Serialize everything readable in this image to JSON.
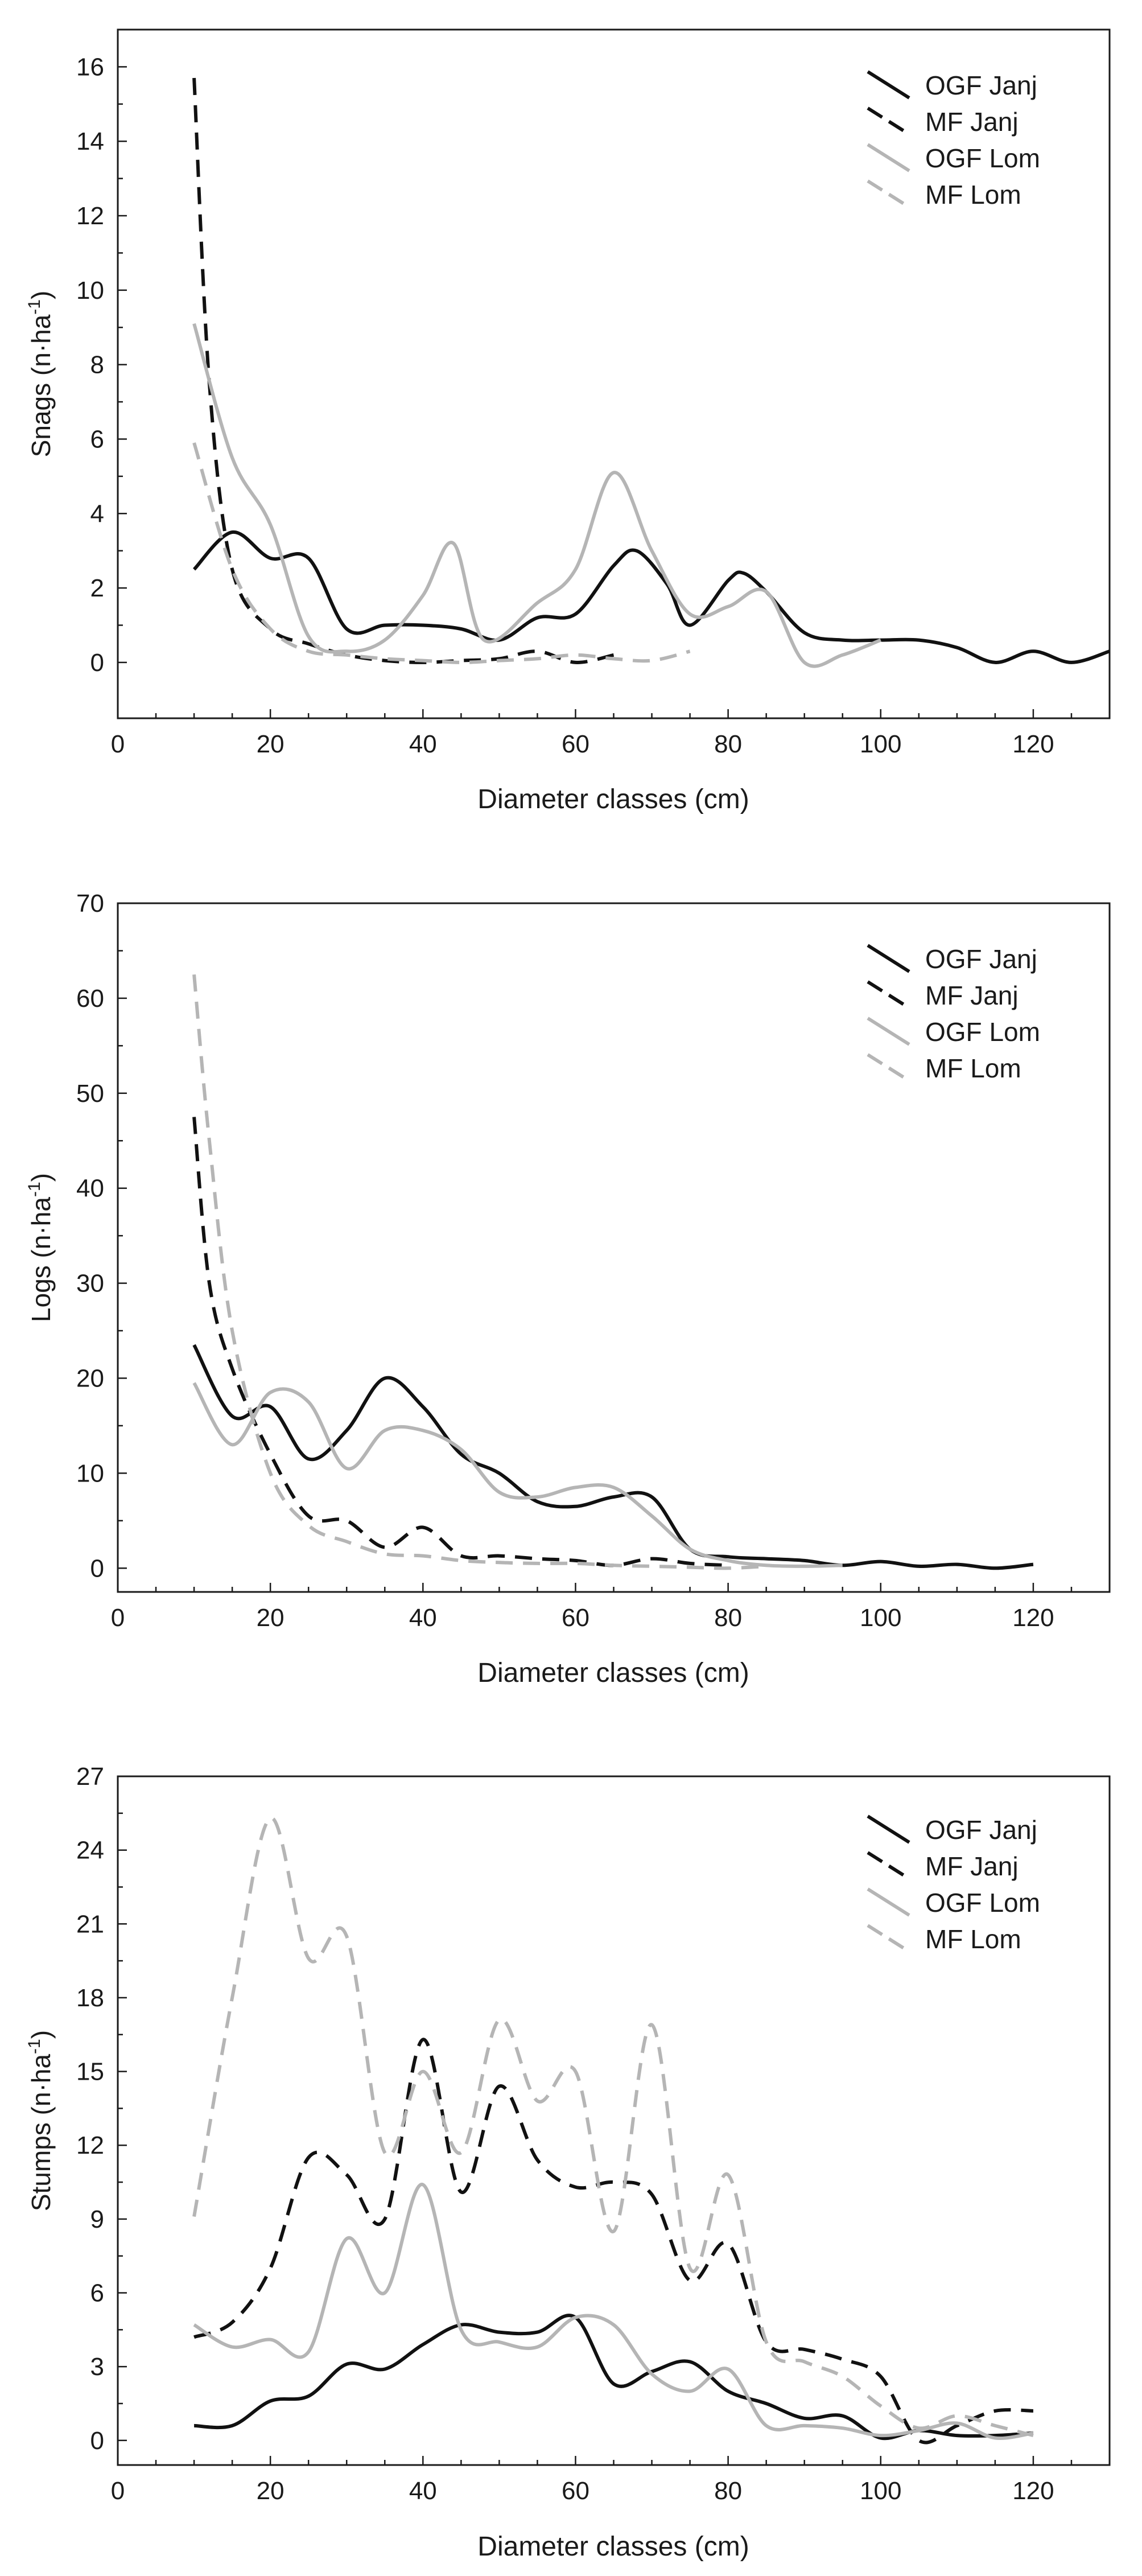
{
  "colors": {
    "black_series": "#111111",
    "gray_series": "#b5b5b5",
    "axis": "#1a1a1a"
  },
  "legend_labels": [
    "OGF Janj",
    "MF Janj",
    "OGF Lom",
    "MF Lom"
  ],
  "chart_data": [
    {
      "type": "line",
      "title": "",
      "xlabel": "Diameter classes (cm)",
      "ylabel": "Snags (n·ha⁻¹)",
      "ylabel_parts": {
        "pre": "Snags (n·ha",
        "sup": "-1",
        "post": ")"
      },
      "xlim": [
        0,
        130
      ],
      "ylim": [
        -1.5,
        17
      ],
      "xticks": [
        0,
        20,
        40,
        60,
        80,
        100,
        120
      ],
      "yticks": [
        0,
        2,
        4,
        6,
        8,
        10,
        12,
        14,
        16
      ],
      "legend_position": "top-right",
      "series": [
        {
          "name": "OGF Janj",
          "color": "black",
          "dash": false,
          "x": [
            10,
            15,
            20,
            25,
            30,
            35,
            40,
            45,
            50,
            55,
            60,
            65,
            68,
            72,
            75,
            80,
            82,
            85,
            90,
            95,
            100,
            105,
            110,
            115,
            120,
            125,
            130
          ],
          "y": [
            2.5,
            3.5,
            2.8,
            2.8,
            0.9,
            1.0,
            1.0,
            0.9,
            0.6,
            1.2,
            1.3,
            2.6,
            3.0,
            2.1,
            1.0,
            2.2,
            2.4,
            1.9,
            0.8,
            0.6,
            0.6,
            0.6,
            0.4,
            0.0,
            0.3,
            0.0,
            0.3
          ]
        },
        {
          "name": "MF Janj",
          "color": "black",
          "dash": true,
          "x": [
            10,
            12,
            15,
            20,
            25,
            30,
            35,
            40,
            45,
            50,
            55,
            60,
            65
          ],
          "y": [
            15.7,
            7.5,
            2.5,
            0.9,
            0.5,
            0.2,
            0.05,
            0.0,
            0.05,
            0.1,
            0.3,
            0.0,
            0.2
          ]
        },
        {
          "name": "OGF Lom",
          "color": "gray",
          "dash": false,
          "x": [
            10,
            15,
            20,
            25,
            30,
            35,
            40,
            44,
            48,
            55,
            60,
            65,
            70,
            75,
            80,
            85,
            90,
            95,
            100
          ],
          "y": [
            9.1,
            5.5,
            3.7,
            0.7,
            0.3,
            0.6,
            1.8,
            3.2,
            0.6,
            1.6,
            2.5,
            5.1,
            3.0,
            1.3,
            1.5,
            1.9,
            0.0,
            0.2,
            0.6
          ]
        },
        {
          "name": "MF Lom",
          "color": "gray",
          "dash": true,
          "x": [
            10,
            15,
            20,
            25,
            30,
            35,
            40,
            45,
            50,
            55,
            60,
            65,
            70,
            75
          ],
          "y": [
            5.9,
            2.5,
            0.9,
            0.3,
            0.2,
            0.1,
            0.05,
            0.0,
            0.05,
            0.1,
            0.2,
            0.1,
            0.05,
            0.3
          ]
        }
      ]
    },
    {
      "type": "line",
      "title": "",
      "xlabel": "Diameter classes (cm)",
      "ylabel": "Logs (n·ha⁻¹)",
      "ylabel_parts": {
        "pre": "Logs (n·ha",
        "sup": "-1",
        "post": ")"
      },
      "xlim": [
        0,
        130
      ],
      "ylim": [
        -2.5,
        70
      ],
      "xticks": [
        0,
        20,
        40,
        60,
        80,
        100,
        120
      ],
      "yticks": [
        0,
        10,
        20,
        30,
        40,
        50,
        60,
        70
      ],
      "legend_position": "top-right",
      "series": [
        {
          "name": "OGF Janj",
          "color": "black",
          "dash": false,
          "x": [
            10,
            15,
            20,
            25,
            30,
            35,
            40,
            45,
            50,
            55,
            60,
            65,
            70,
            75,
            80,
            85,
            90,
            95,
            100,
            105,
            110,
            115,
            120
          ],
          "y": [
            23.5,
            16,
            17,
            11.5,
            14.5,
            20,
            17,
            12,
            10,
            7,
            6.5,
            7.5,
            7.5,
            2,
            1.2,
            1.0,
            0.8,
            0.3,
            0.7,
            0.2,
            0.4,
            0.0,
            0.4
          ]
        },
        {
          "name": "MF Janj",
          "color": "black",
          "dash": true,
          "x": [
            10,
            12,
            15,
            20,
            25,
            30,
            35,
            40,
            45,
            50,
            55,
            60,
            65,
            70,
            75,
            80
          ],
          "y": [
            47.5,
            30,
            21,
            12,
            5.5,
            5.0,
            2.2,
            4.3,
            1.3,
            1.3,
            1.0,
            0.8,
            0.3,
            1.0,
            0.5,
            0.3
          ]
        },
        {
          "name": "OGF Lom",
          "color": "gray",
          "dash": false,
          "x": [
            10,
            15,
            20,
            25,
            30,
            35,
            40,
            45,
            50,
            55,
            60,
            65,
            70,
            75,
            80,
            85,
            90,
            95
          ],
          "y": [
            19.5,
            13,
            18.5,
            17.5,
            10.5,
            14.5,
            14.5,
            12.5,
            8,
            7.5,
            8.5,
            8.5,
            5.5,
            2.0,
            0.8,
            0.3,
            0.2,
            0.3
          ]
        },
        {
          "name": "MF Lom",
          "color": "gray",
          "dash": true,
          "x": [
            10,
            12,
            15,
            20,
            25,
            30,
            35,
            40,
            45,
            50,
            55,
            60,
            65,
            70,
            75,
            80,
            85
          ],
          "y": [
            62.5,
            45,
            25,
            10,
            4.5,
            2.8,
            1.5,
            1.3,
            0.8,
            0.6,
            0.5,
            0.5,
            0.3,
            0.2,
            0.1,
            0.0,
            0.2
          ]
        }
      ]
    },
    {
      "type": "line",
      "title": "",
      "xlabel": "Diameter classes (cm)",
      "ylabel": "Stumps (n·ha⁻¹)",
      "ylabel_parts": {
        "pre": "Stumps (n·ha",
        "sup": "-1",
        "post": ")"
      },
      "xlim": [
        0,
        130
      ],
      "ylim": [
        -1,
        27
      ],
      "xticks": [
        0,
        20,
        40,
        60,
        80,
        100,
        120
      ],
      "yticks": [
        0,
        3,
        6,
        9,
        12,
        15,
        18,
        21,
        24,
        27
      ],
      "legend_position": "top-right",
      "series": [
        {
          "name": "OGF Janj",
          "color": "black",
          "dash": false,
          "x": [
            10,
            15,
            20,
            25,
            30,
            35,
            40,
            45,
            50,
            55,
            60,
            65,
            70,
            75,
            80,
            85,
            90,
            95,
            100,
            105,
            110,
            115,
            120
          ],
          "y": [
            0.6,
            0.6,
            1.6,
            1.8,
            3.1,
            2.9,
            3.9,
            4.7,
            4.4,
            4.4,
            5.0,
            2.3,
            2.8,
            3.2,
            2.0,
            1.5,
            0.9,
            1.0,
            0.1,
            0.4,
            0.2,
            0.2,
            0.3
          ]
        },
        {
          "name": "MF Janj",
          "color": "black",
          "dash": true,
          "x": [
            10,
            15,
            20,
            25,
            30,
            35,
            40,
            45,
            50,
            55,
            60,
            65,
            70,
            75,
            80,
            85,
            90,
            95,
            100,
            105,
            110,
            115,
            120
          ],
          "y": [
            4.2,
            4.8,
            7.0,
            11.5,
            10.8,
            9.0,
            16.3,
            10.1,
            14.4,
            11.4,
            10.3,
            10.5,
            10.0,
            6.5,
            8.0,
            4.0,
            3.7,
            3.3,
            2.6,
            0.0,
            0.6,
            1.2,
            1.2
          ]
        },
        {
          "name": "OGF Lom",
          "color": "gray",
          "dash": false,
          "x": [
            10,
            15,
            20,
            25,
            30,
            35,
            40,
            45,
            50,
            55,
            60,
            65,
            70,
            75,
            80,
            85,
            90,
            95,
            100,
            105,
            110,
            115,
            120
          ],
          "y": [
            4.7,
            3.8,
            4.1,
            3.6,
            8.2,
            6.0,
            10.4,
            4.5,
            4.0,
            3.8,
            5.0,
            4.7,
            2.7,
            2.0,
            2.9,
            0.6,
            0.6,
            0.5,
            0.2,
            0.4,
            0.7,
            0.1,
            0.3
          ]
        },
        {
          "name": "MF Lom",
          "color": "gray",
          "dash": true,
          "x": [
            10,
            15,
            20,
            25,
            30,
            35,
            40,
            45,
            50,
            55,
            60,
            65,
            70,
            75,
            80,
            85,
            90,
            95,
            100,
            105,
            110,
            115,
            120
          ],
          "y": [
            9.1,
            18.0,
            25.3,
            19.6,
            20.5,
            11.7,
            15.0,
            11.7,
            17.1,
            13.8,
            15.0,
            8.5,
            16.9,
            7.0,
            10.8,
            4.0,
            3.2,
            2.6,
            1.4,
            0.5,
            1.0,
            0.6,
            0.2
          ]
        }
      ]
    }
  ]
}
